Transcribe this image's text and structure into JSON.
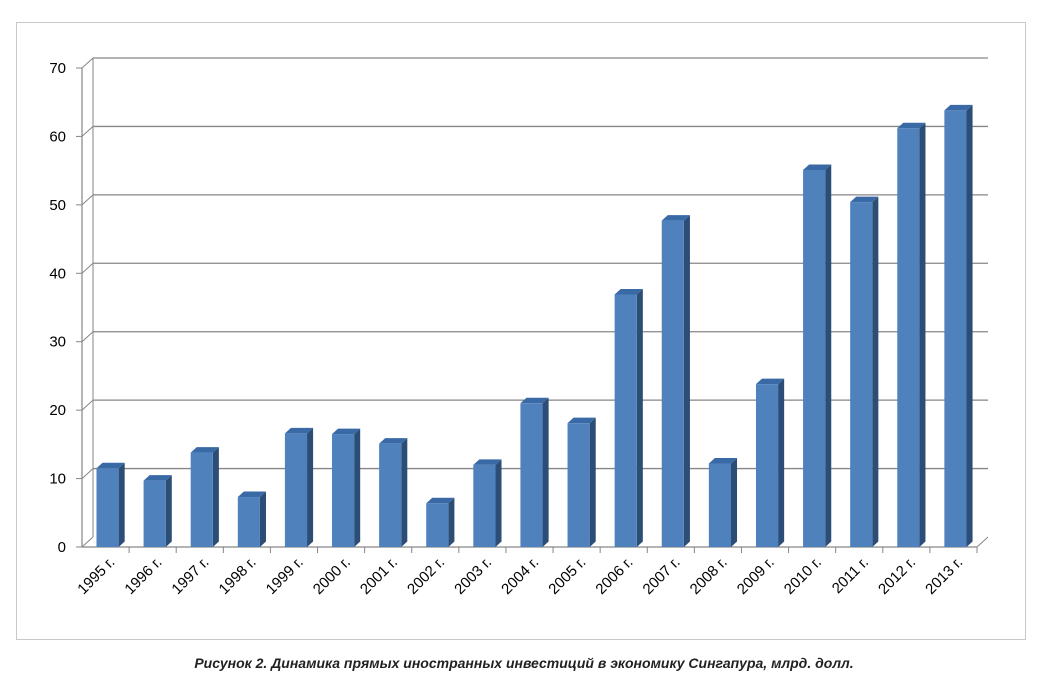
{
  "caption": "Рисунок 2. Динамика прямых иностранных инвестиций в экономику Сингапура, млрд. долл.",
  "colors": {
    "bar_front": "#4f81bd",
    "bar_side": "#2c4d75",
    "bar_top": "#3a6aa6",
    "grid": "#868686"
  },
  "chart_data": {
    "type": "bar",
    "title": "",
    "xlabel": "",
    "ylabel": "",
    "ylim": [
      0,
      70
    ],
    "yticks": [
      0,
      10,
      20,
      30,
      40,
      50,
      60,
      70
    ],
    "grid": true,
    "legend": "none",
    "categories": [
      "1995 г.",
      "1996 г.",
      "1997 г.",
      "1998 г.",
      "1999 г.",
      "2000 г.",
      "2001 г.",
      "2002 г.",
      "2003 г.",
      "2004 г.",
      "2005 г.",
      "2006 г.",
      "2007 г.",
      "2008 г.",
      "2009 г.",
      "2010 г.",
      "2011 г.",
      "2012 г.",
      "2013 г."
    ],
    "values": [
      11.5,
      9.7,
      13.8,
      7.3,
      16.6,
      16.5,
      15.1,
      6.4,
      12.0,
      21.0,
      18.1,
      36.9,
      47.7,
      12.2,
      23.8,
      55.1,
      50.4,
      61.2,
      63.8
    ]
  }
}
